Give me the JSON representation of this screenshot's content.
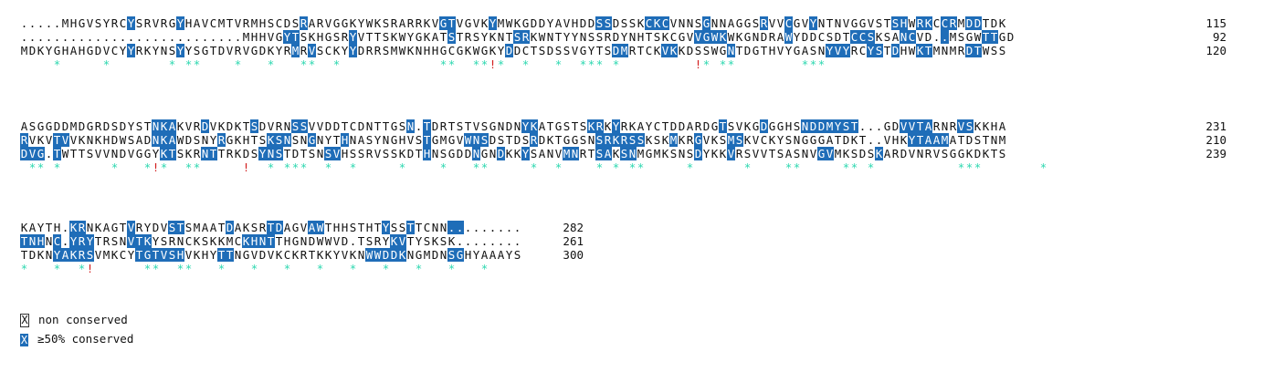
{
  "blocks": [
    {
      "rows": [
        {
          "seq": ".....MHGVSYRCYSRVRGYHAVCMTVRMHSCDSRARVGGKYWKSRARRKVGTVGVKYMWKGDDYAVHDDSSDSSKCKCVNNSGNNAGGSRVVCGVYNTNVGGVSTSHWRKCCRMDDTDK",
          "num": "115"
        },
        {
          "seq": "...........................MHHVGYTSKHGSRYVTTSKWYGKATSTRSYKNTSRKWNTYYNSSRDYNHTSKCGVVGWKWKGNDRAWYDDCSDTCCSKSANCVD..MSGWTTGD",
          "num": "92"
        },
        {
          "seq": "MDKYGHAHGDVCYYRKYNSYYSGTDVRVGDKYRMRVSCKYYDRRSMWKNHHGCGKWGKYDDCTSDSSVGYTSDMRTCKVKKDSSWGNTDGTHVYGASNYVYRCYSTDHWKTMNMRDTWSS",
          "num": "120"
        }
      ],
      "marks": "    *     *       * **    *   *   **  *            **  **!*  *   *  *** *         !* **        ***"
    },
    {
      "rows": [
        {
          "seq": "ASGGDDMDGRDSDYSTNKAKVRDVKDKTSDVRNSSVVDDTCDNTTGSN.TDRTSTVSGNDNYKATGSTSKRKYRKAYCTDDARDGTSVKGDGGHSNDDMYST...GDVVTARNRVSKKHA",
          "num": "231"
        },
        {
          "seq": "RVKVTVVKNKHDWSADNKAWDSNYRGKHTSKSNSNGNYTHNASYNGHVSTGMGVWNSDSTDSRDKTGGSNSRKRSSKSKMKRGVKSMSKVCKYSNGGGATDKT..VHKYTAAMATDSTNM",
          "num": "210"
        },
        {
          "seq": "DVG.TWTTSVVNDVGGYKTSKRNTTRKDSYNSTDTSNSVHSSRVSSKDTHNSGDDNGNDKKYSANVMNRTSAKSNMGMKSNSDYKKVRSVVTSASNVGVMKSDSKARDVNRVSGGKDKTS",
          "num": "239"
        }
      ],
      "marks": " ** *      *   *!*  **     !  * ***  *  *     *    *   **     *  *    * * **     *      *    **     ** *          ***       *"
    },
    {
      "rows": [
        {
          "seq": "KAYTH.KRNKAGTVRYDVSTSMAATDAKSRTDAGVAWTHHSTHTYSSTTCNN.........",
          "num": "282"
        },
        {
          "seq": "TNHNC.YRYTRSNVTKYSRNCKSKKMCKHNTTHGNDWWVD.TSRYKVTYSKSK........",
          "num": "261"
        },
        {
          "seq": "TDKNYAKRSVMKCYTGTVSHVKHYTTNGVDVKCKRTKKYVKNWWDDKNGMDNSGHYAAAYS",
          "num": "300"
        }
      ],
      "marks": "*   *  *!      **  **   *   *   *   *   *   *   *   *   *"
    }
  ],
  "highlights": [
    [
      [
        13,
        19,
        34,
        51,
        52,
        57,
        70,
        71,
        76,
        77,
        78,
        83,
        90,
        93,
        96,
        106,
        107,
        109,
        110,
        112,
        113,
        115,
        116
      ],
      [
        32,
        33,
        40,
        52,
        60,
        61,
        82,
        83,
        84,
        85,
        93,
        101,
        102,
        103,
        107,
        108,
        112,
        117,
        118
      ],
      [
        13,
        19,
        33,
        35,
        40,
        59,
        72,
        73,
        78,
        79,
        86,
        98,
        99,
        100,
        103,
        104,
        106,
        109,
        110,
        115,
        116
      ]
    ],
    [
      [
        16,
        17,
        18,
        22,
        28,
        33,
        34,
        47,
        49,
        61,
        62,
        69,
        70,
        72,
        85,
        90,
        95,
        96,
        97,
        98,
        99,
        100,
        101,
        107,
        108,
        109,
        110,
        114,
        115
      ],
      [
        0,
        4,
        5,
        16,
        17,
        18,
        24,
        30,
        31,
        32,
        35,
        39,
        49,
        54,
        55,
        56,
        62,
        70,
        71,
        72,
        73,
        74,
        75,
        79,
        82,
        86,
        87,
        108,
        109,
        110,
        111,
        112
      ],
      [
        0,
        1,
        2,
        4,
        17,
        18,
        22,
        23,
        29,
        30,
        31,
        37,
        38,
        49,
        55,
        58,
        61,
        66,
        67,
        70,
        71,
        73,
        74,
        82,
        86,
        97,
        98,
        104
      ]
    ],
    [
      [
        6,
        7,
        13,
        18,
        19,
        25,
        30,
        31,
        35,
        36,
        44,
        47,
        52,
        53
      ],
      [
        0,
        1,
        2,
        4,
        6,
        7,
        8,
        13,
        14,
        15,
        27,
        28,
        29,
        30,
        45,
        46
      ],
      [
        4,
        5,
        6,
        7,
        8,
        14,
        15,
        16,
        17,
        18,
        19,
        24,
        25,
        42,
        43,
        44,
        45,
        46,
        52,
        53
      ]
    ]
  ],
  "legend": {
    "items": [
      {
        "glyph": "X",
        "style": "plain",
        "label": "non conserved"
      },
      {
        "glyph": "X",
        "style": "fill",
        "label": "≥50% conserved"
      }
    ]
  },
  "colors": {
    "highlight": "#1f6db8",
    "star": "#2ed8b0",
    "bang": "#d32020"
  }
}
